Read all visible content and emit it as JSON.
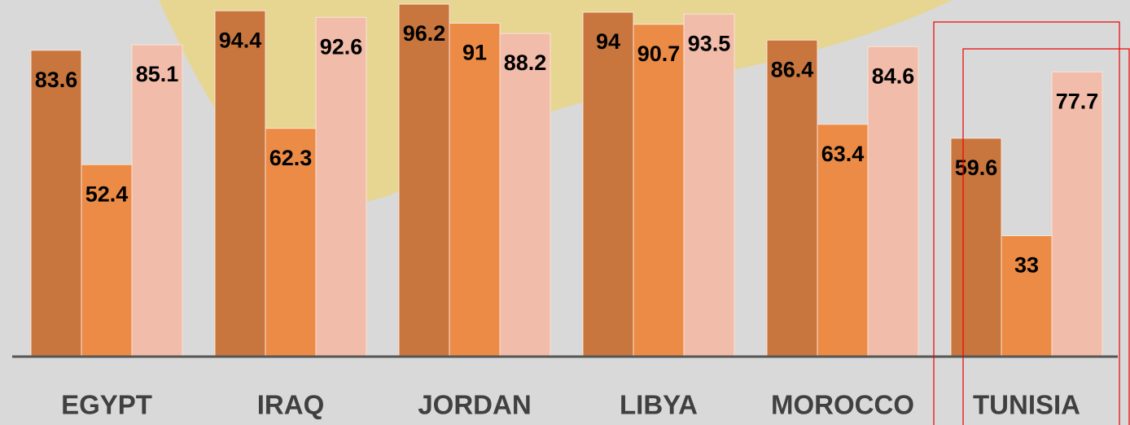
{
  "chart_data": {
    "type": "bar",
    "categories": [
      "EGYPT",
      "IRAQ",
      "JORDAN",
      "LIBYA",
      "MOROCCO",
      "TUNISIA"
    ],
    "series": [
      {
        "color": "#c8763e",
        "values": [
          83.6,
          94.4,
          96.2,
          94,
          86.4,
          59.6
        ]
      },
      {
        "color": "#ec8b45",
        "values": [
          52.4,
          62.3,
          91,
          90.7,
          63.4,
          33
        ]
      },
      {
        "color": "#f1bca9",
        "values": [
          85.1,
          92.6,
          88.2,
          93.5,
          84.6,
          77.7
        ]
      }
    ],
    "ylim": [
      0,
      97
    ]
  }
}
